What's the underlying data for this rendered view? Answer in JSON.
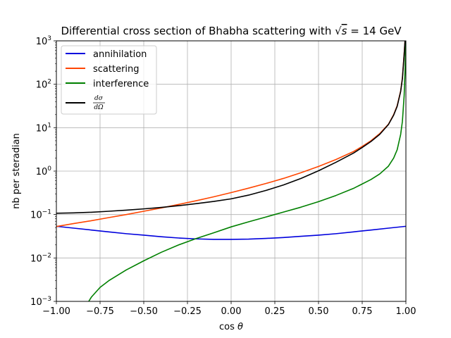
{
  "chart_data": {
    "type": "line",
    "title": "Differential cross section of Bhabha scattering with √s = 14 GeV",
    "title_parts": {
      "prefix": "Differential cross section of Bhabha scattering with ",
      "sqrt_symbol": "√",
      "radicand": "s",
      "suffix": " = 14 GeV"
    },
    "xlabel": "cos θ",
    "xlabel_parts": {
      "func": "cos",
      "var": "θ"
    },
    "ylabel": "nb per steradian",
    "xlim": [
      -1.0,
      1.0
    ],
    "ylim": [
      0.001,
      1000
    ],
    "yscale": "log",
    "grid": true,
    "legend_position": "top-left",
    "x_ticks": [
      -1.0,
      -0.75,
      -0.5,
      -0.25,
      0.0,
      0.25,
      0.5,
      0.75,
      1.0
    ],
    "x_tick_labels": [
      "−1.00",
      "−0.75",
      "−0.50",
      "−0.25",
      "0.00",
      "0.25",
      "0.50",
      "0.75",
      "1.00"
    ],
    "y_ticks": [
      0.001,
      0.01,
      0.1,
      1,
      10,
      100,
      1000
    ],
    "y_tick_exponents": [
      "−3",
      "−2",
      "−1",
      "0",
      "1",
      "2",
      "3"
    ],
    "y_tick_base": "10",
    "series": [
      {
        "name": "annihilation",
        "color": "#0000dd",
        "x": [
          -1.0,
          -0.9,
          -0.8,
          -0.7,
          -0.6,
          -0.5,
          -0.4,
          -0.3,
          -0.2,
          -0.1,
          0.0,
          0.1,
          0.2,
          0.3,
          0.4,
          0.5,
          0.6,
          0.7,
          0.8,
          0.9,
          1.0
        ],
        "y": [
          0.0536,
          0.0486,
          0.044,
          0.0399,
          0.0362,
          0.0335,
          0.0308,
          0.0288,
          0.0275,
          0.0268,
          0.0268,
          0.0272,
          0.0282,
          0.0295,
          0.0315,
          0.0335,
          0.0362,
          0.0399,
          0.044,
          0.0486,
          0.0536
        ]
      },
      {
        "name": "scattering",
        "color": "#ff4500",
        "x": [
          -1.0,
          -0.9,
          -0.8,
          -0.7,
          -0.6,
          -0.5,
          -0.4,
          -0.3,
          -0.2,
          -0.1,
          0.0,
          0.1,
          0.2,
          0.3,
          0.4,
          0.5,
          0.6,
          0.7,
          0.75,
          0.8,
          0.85,
          0.9,
          0.93,
          0.95,
          0.97,
          0.98,
          0.99,
          0.995
        ],
        "y": [
          0.053,
          0.062,
          0.072,
          0.085,
          0.1,
          0.119,
          0.142,
          0.171,
          0.208,
          0.256,
          0.32,
          0.405,
          0.52,
          0.68,
          0.92,
          1.28,
          1.85,
          2.82,
          3.7,
          5.0,
          7.3,
          12.0,
          20.0,
          32.0,
          70.0,
          140.0,
          500.0,
          1000.0
        ]
      },
      {
        "name": "interference",
        "color": "#008000",
        "x": [
          -0.815,
          -0.8,
          -0.75,
          -0.7,
          -0.6,
          -0.5,
          -0.4,
          -0.3,
          -0.2,
          -0.1,
          0.0,
          0.1,
          0.2,
          0.3,
          0.4,
          0.5,
          0.6,
          0.7,
          0.8,
          0.85,
          0.9,
          0.93,
          0.95,
          0.97,
          0.98,
          0.99,
          0.995,
          0.999
        ],
        "y": [
          0.001,
          0.00125,
          0.0021,
          0.003,
          0.0053,
          0.0086,
          0.0135,
          0.02,
          0.028,
          0.038,
          0.052,
          0.068,
          0.088,
          0.114,
          0.148,
          0.198,
          0.275,
          0.4,
          0.64,
          0.86,
          1.3,
          2.0,
          3.1,
          7.0,
          14.0,
          55.0,
          200.0,
          1000.0
        ]
      },
      {
        "name": "dσ/dΩ",
        "color": "#000000",
        "label_parts": {
          "num": "dσ",
          "den": "dΩ"
        },
        "x": [
          -1.0,
          -0.9,
          -0.8,
          -0.7,
          -0.6,
          -0.5,
          -0.4,
          -0.3,
          -0.2,
          -0.1,
          0.0,
          0.1,
          0.2,
          0.3,
          0.4,
          0.5,
          0.6,
          0.7,
          0.75,
          0.8,
          0.85,
          0.9,
          0.93,
          0.95,
          0.97,
          0.98,
          0.99,
          0.995
        ],
        "y": [
          0.107,
          0.109,
          0.113,
          0.119,
          0.126,
          0.135,
          0.146,
          0.16,
          0.178,
          0.2,
          0.23,
          0.28,
          0.36,
          0.48,
          0.68,
          1.02,
          1.6,
          2.6,
          3.5,
          4.8,
          7.0,
          11.8,
          19.5,
          31.0,
          68.0,
          135.0,
          480.0,
          1000.0
        ]
      }
    ]
  }
}
